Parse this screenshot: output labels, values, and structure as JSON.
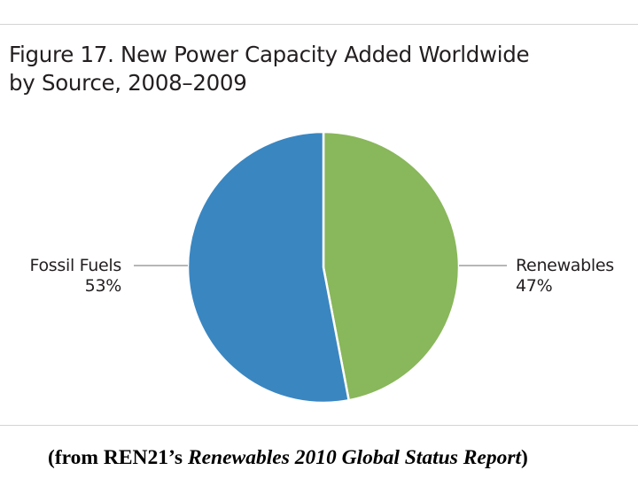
{
  "chart_data": {
    "type": "pie",
    "title": "Figure 17. New Power Capacity Added Worldwide by Source, 2008–2009",
    "title_lines": [
      "Figure 17. New Power Capacity Added Worldwide",
      "by Source, 2008–2009"
    ],
    "slices": [
      {
        "name": "Fossil Fuels",
        "value": 53,
        "label": "53%",
        "color": "#3a86c1"
      },
      {
        "name": "Renewables",
        "value": 47,
        "label": "47%",
        "color": "#89b75b"
      }
    ],
    "legend": "none"
  },
  "caption": {
    "prefix": "(from REN21’s ",
    "title": "Renewables 2010 Global Status Report",
    "suffix": ")"
  }
}
